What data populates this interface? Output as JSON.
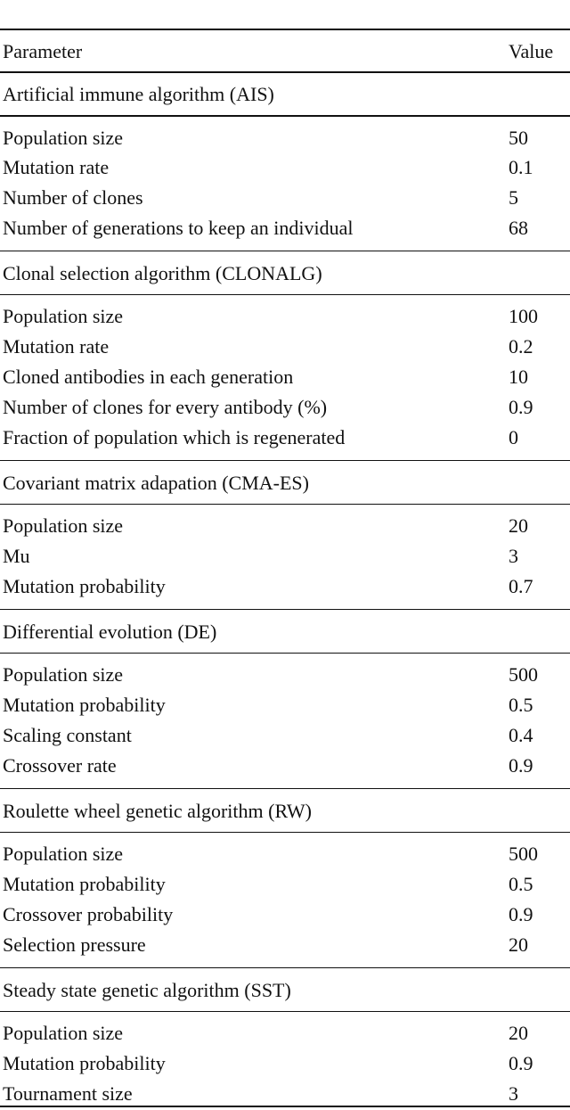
{
  "table": {
    "header": [
      "Parameter",
      "Value"
    ],
    "sections": [
      {
        "title": "Artificial immune algorithm (AIS)",
        "rows": [
          [
            "Population size",
            "50"
          ],
          [
            "Mutation rate",
            "0.1"
          ],
          [
            "Number of clones",
            "5"
          ],
          [
            "Number of generations to keep an individual",
            "68"
          ]
        ]
      },
      {
        "title": "Clonal selection algorithm (CLONALG)",
        "rows": [
          [
            "Population size",
            "100"
          ],
          [
            "Mutation rate",
            "0.2"
          ],
          [
            "Cloned antibodies in each generation",
            "10"
          ],
          [
            "Number of clones for every antibody (%)",
            "0.9"
          ],
          [
            "Fraction of population which is regenerated",
            "0"
          ]
        ]
      },
      {
        "title": "Covariant matrix adapation (CMA-ES)",
        "rows": [
          [
            "Population size",
            "20"
          ],
          [
            "Mu",
            "3"
          ],
          [
            "Mutation probability",
            "0.7"
          ]
        ]
      },
      {
        "title": "Differential evolution (DE)",
        "rows": [
          [
            "Population size",
            "500"
          ],
          [
            "Mutation probability",
            "0.5"
          ],
          [
            "Scaling constant",
            "0.4"
          ],
          [
            "Crossover rate",
            "0.9"
          ]
        ]
      },
      {
        "title": "Roulette wheel genetic algorithm (RW)",
        "rows": [
          [
            "Population size",
            "500"
          ],
          [
            "Mutation probability",
            "0.5"
          ],
          [
            "Crossover probability",
            "0.9"
          ],
          [
            "Selection pressure",
            "20"
          ]
        ]
      },
      {
        "title": "Steady state genetic algorithm (SST)",
        "rows": [
          [
            "Population size",
            "20"
          ],
          [
            "Mutation probability",
            "0.9"
          ],
          [
            "Tournament size",
            "3"
          ]
        ]
      }
    ]
  }
}
